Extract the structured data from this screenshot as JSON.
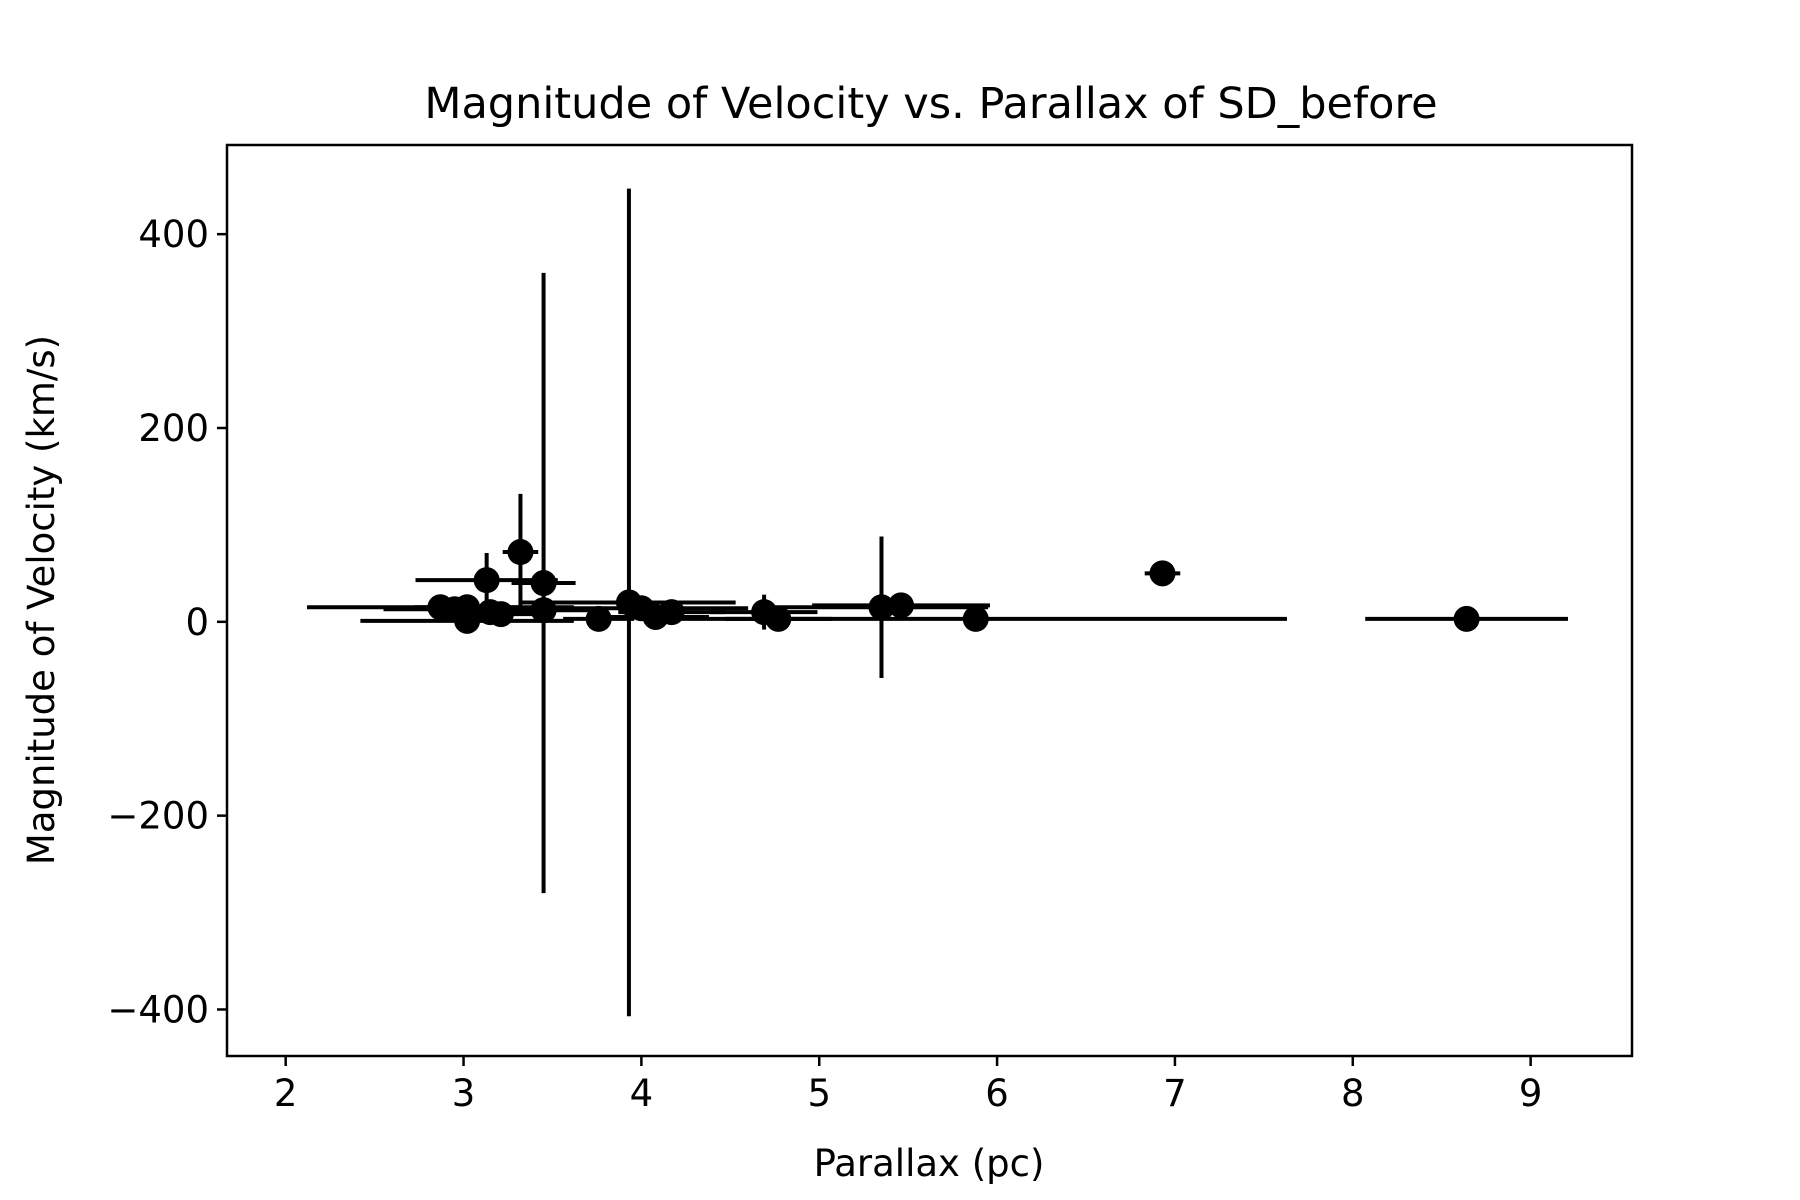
{
  "chart_data": {
    "type": "scatter",
    "title": "Magnitude of Velocity vs. Parallax of SD_before",
    "xlabel": "Parallax (pc)",
    "ylabel": "Magnitude of Velocity (km/s)",
    "xlim": [
      1.67,
      9.57
    ],
    "ylim": [
      -448,
      492
    ],
    "xticks": [
      2,
      3,
      4,
      5,
      6,
      7,
      8,
      9
    ],
    "xtick_labels": [
      "2",
      "3",
      "4",
      "5",
      "6",
      "7",
      "8",
      "9"
    ],
    "yticks": [
      -400,
      -200,
      0,
      200,
      400
    ],
    "ytick_labels": [
      "−400",
      "−200",
      "0",
      "200",
      "400"
    ],
    "grid": false,
    "legend": "none",
    "marker_color": "#000000",
    "points": [
      {
        "x": 2.87,
        "y": 15,
        "xerr": 0.75,
        "yerr": 3
      },
      {
        "x": 2.95,
        "y": 13,
        "xerr": 0.4,
        "yerr": 3
      },
      {
        "x": 3.02,
        "y": 1,
        "xerr": 0.6,
        "yerr": 2
      },
      {
        "x": 3.02,
        "y": 15,
        "xerr": 0.3,
        "yerr": 3
      },
      {
        "x": 3.13,
        "y": 43,
        "xerr": 0.4,
        "yerr": 28
      },
      {
        "x": 3.15,
        "y": 10,
        "xerr": 0.3,
        "yerr": 3
      },
      {
        "x": 3.21,
        "y": 8,
        "xerr": 0.3,
        "yerr": 3
      },
      {
        "x": 3.32,
        "y": 72,
        "xerr": 0.1,
        "yerr": 60
      },
      {
        "x": 3.45,
        "y": 40,
        "xerr": 0.18,
        "yerr": 320
      },
      {
        "x": 3.45,
        "y": 12,
        "xerr": 0.3,
        "yerr": 3
      },
      {
        "x": 3.76,
        "y": 3,
        "xerr": 0.2,
        "yerr": 3
      },
      {
        "x": 3.93,
        "y": 20,
        "xerr": 0.6,
        "yerr": 427
      },
      {
        "x": 4.0,
        "y": 14,
        "xerr": 0.6,
        "yerr": 3
      },
      {
        "x": 4.08,
        "y": 5,
        "xerr": 0.3,
        "yerr": 3
      },
      {
        "x": 4.17,
        "y": 10,
        "xerr": 0.3,
        "yerr": 3
      },
      {
        "x": 4.69,
        "y": 10,
        "xerr": 0.3,
        "yerr": 18
      },
      {
        "x": 4.77,
        "y": 3,
        "xerr": 0.3,
        "yerr": 3
      },
      {
        "x": 5.35,
        "y": 15,
        "xerr": 0.6,
        "yerr": 73
      },
      {
        "x": 5.46,
        "y": 17,
        "xerr": 0.5,
        "yerr": 3
      },
      {
        "x": 5.88,
        "y": 3,
        "xerr": 1.75,
        "yerr": 3
      },
      {
        "x": 6.93,
        "y": 50,
        "xerr": 0.1,
        "yerr": 3
      },
      {
        "x": 8.64,
        "y": 3,
        "xerr": 0.57,
        "yerr": 3
      }
    ]
  }
}
